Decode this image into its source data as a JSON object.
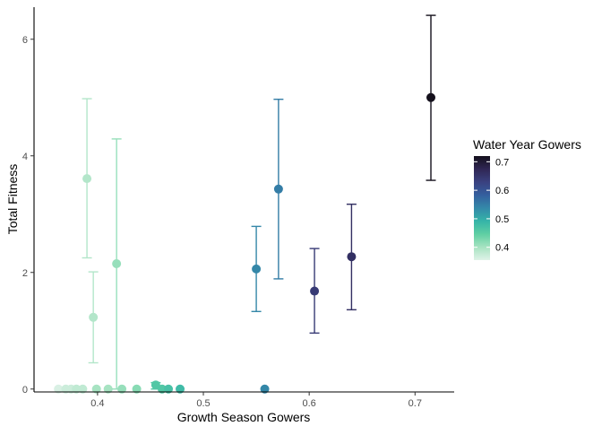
{
  "chart_data": {
    "type": "scatter",
    "title": "",
    "xlabel": "Growth Season Gowers",
    "ylabel": "Total Fitness",
    "xlim": [
      0.34,
      0.737
    ],
    "ylim": [
      -0.05,
      6.55
    ],
    "x_ticks": [
      0.4,
      0.5,
      0.6,
      0.7
    ],
    "x_tick_labels": [
      "0.4",
      "0.5",
      "0.6",
      "0.7"
    ],
    "y_ticks": [
      0,
      2,
      4,
      6
    ],
    "y_tick_labels": [
      "0",
      "2",
      "4",
      "6"
    ],
    "grid": false,
    "legend": {
      "title": "Water Year Gowers",
      "placement": "right",
      "range": [
        0.355,
        0.72
      ],
      "ticks": [
        0.4,
        0.5,
        0.6,
        0.7
      ],
      "tick_labels": [
        "0.4",
        "0.5",
        "0.6",
        "0.7"
      ],
      "colors": [
        "#dff2e8",
        "#a6e3c1",
        "#5fcfa3",
        "#35b4a8",
        "#3489a9",
        "#345f9e",
        "#3a4180",
        "#2f2654",
        "#14101c"
      ]
    },
    "points": [
      {
        "x": 0.363,
        "y": 0.0,
        "ymin": 0.0,
        "ymax": 0.0,
        "c": 0.36
      },
      {
        "x": 0.37,
        "y": 0.0,
        "ymin": 0.0,
        "ymax": 0.0,
        "c": 0.37
      },
      {
        "x": 0.375,
        "y": 0.0,
        "ymin": 0.0,
        "ymax": 0.0,
        "c": 0.37
      },
      {
        "x": 0.38,
        "y": 0.0,
        "ymin": 0.0,
        "ymax": 0.0,
        "c": 0.38
      },
      {
        "x": 0.386,
        "y": 0.0,
        "ymin": 0.0,
        "ymax": 0.0,
        "c": 0.38
      },
      {
        "x": 0.39,
        "y": 3.61,
        "ymin": 2.25,
        "ymax": 4.98,
        "c": 0.39
      },
      {
        "x": 0.396,
        "y": 1.23,
        "ymin": 0.45,
        "ymax": 2.01,
        "c": 0.39
      },
      {
        "x": 0.399,
        "y": 0.0,
        "ymin": 0.0,
        "ymax": 0.0,
        "c": 0.4
      },
      {
        "x": 0.41,
        "y": 0.0,
        "ymin": 0.0,
        "ymax": 0.0,
        "c": 0.4
      },
      {
        "x": 0.418,
        "y": 2.15,
        "ymin": 0.0,
        "ymax": 4.29,
        "c": 0.41
      },
      {
        "x": 0.423,
        "y": 0.0,
        "ymin": 0.0,
        "ymax": 0.0,
        "c": 0.41
      },
      {
        "x": 0.437,
        "y": 0.0,
        "ymin": 0.0,
        "ymax": 0.0,
        "c": 0.42
      },
      {
        "x": 0.455,
        "y": 0.07,
        "ymin": 0.0,
        "ymax": 0.11,
        "c": 0.46
      },
      {
        "x": 0.461,
        "y": 0.0,
        "ymin": 0.0,
        "ymax": 0.0,
        "c": 0.46
      },
      {
        "x": 0.467,
        "y": 0.0,
        "ymin": 0.0,
        "ymax": 0.0,
        "c": 0.47
      },
      {
        "x": 0.478,
        "y": 0.0,
        "ymin": 0.0,
        "ymax": 0.0,
        "c": 0.48
      },
      {
        "x": 0.55,
        "y": 2.06,
        "ymin": 1.33,
        "ymax": 2.79,
        "c": 0.54
      },
      {
        "x": 0.558,
        "y": 0.0,
        "ymin": 0.0,
        "ymax": 0.0,
        "c": 0.54
      },
      {
        "x": 0.571,
        "y": 3.43,
        "ymin": 1.89,
        "ymax": 4.97,
        "c": 0.55
      },
      {
        "x": 0.605,
        "y": 1.68,
        "ymin": 0.96,
        "ymax": 2.41,
        "c": 0.64
      },
      {
        "x": 0.64,
        "y": 2.27,
        "ymin": 1.36,
        "ymax": 3.17,
        "c": 0.66
      },
      {
        "x": 0.715,
        "y": 5.0,
        "ymin": 3.58,
        "ymax": 6.41,
        "c": 0.72
      }
    ]
  }
}
